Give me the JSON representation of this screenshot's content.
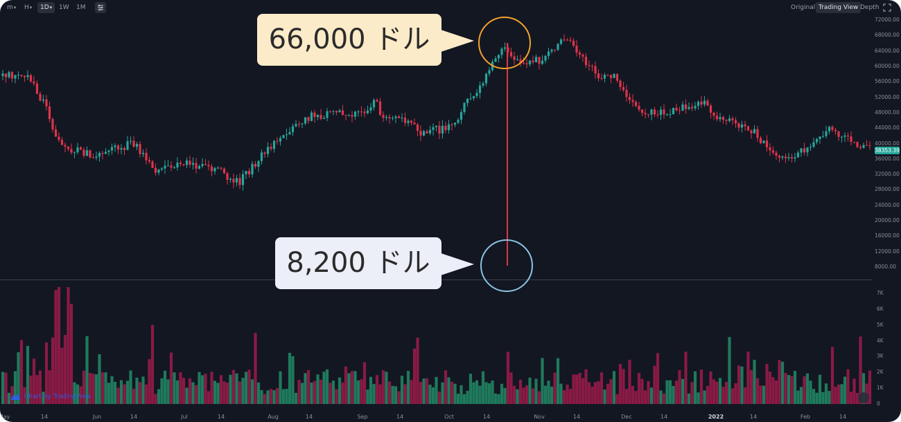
{
  "toolbar": {
    "intervals": [
      {
        "label": "m",
        "dropdown": true,
        "selected": false
      },
      {
        "label": "H",
        "dropdown": true,
        "selected": false
      },
      {
        "label": "1D",
        "dropdown": true,
        "selected": true
      },
      {
        "label": "1W",
        "dropdown": false,
        "selected": false
      },
      {
        "label": "1M",
        "dropdown": false,
        "selected": false
      }
    ],
    "settings_icon": "sliders-icon",
    "views": [
      {
        "label": "Original",
        "selected": false
      },
      {
        "label": "Trading View",
        "selected": true
      },
      {
        "label": "Depth",
        "selected": false
      }
    ],
    "fullscreen_icon": "fullscreen-icon"
  },
  "price_axis": {
    "labels": [
      "72000.00",
      "68000.00",
      "64000.00",
      "60000.00",
      "56000.00",
      "52000.00",
      "48000.00",
      "44000.00",
      "40000.00",
      "36000.00",
      "32000.00",
      "28000.00",
      "24000.00",
      "20000.00",
      "16000.00",
      "12000.00",
      "8000.00"
    ],
    "current_price": "38353.39"
  },
  "volume_axis": {
    "labels": [
      "7K",
      "6K",
      "5K",
      "4K",
      "3K",
      "2K",
      "1K",
      "0"
    ]
  },
  "time_axis": {
    "labels": [
      {
        "text": "May",
        "bold": false
      },
      {
        "text": "14",
        "bold": false
      },
      {
        "text": "Jun",
        "bold": false
      },
      {
        "text": "14",
        "bold": false
      },
      {
        "text": "Jul",
        "bold": false
      },
      {
        "text": "14",
        "bold": false
      },
      {
        "text": "Aug",
        "bold": false
      },
      {
        "text": "14",
        "bold": false
      },
      {
        "text": "Sep",
        "bold": false
      },
      {
        "text": "14",
        "bold": false
      },
      {
        "text": "Oct",
        "bold": false
      },
      {
        "text": "14",
        "bold": false
      },
      {
        "text": "Nov",
        "bold": false
      },
      {
        "text": "14",
        "bold": false
      },
      {
        "text": "Dec",
        "bold": false
      },
      {
        "text": "14",
        "bold": false
      },
      {
        "text": "2022",
        "bold": true
      },
      {
        "text": "14",
        "bold": false
      },
      {
        "text": "Feb",
        "bold": false
      },
      {
        "text": "14",
        "bold": false
      }
    ]
  },
  "watermark": {
    "text": "Chart by TradingView"
  },
  "annotations": {
    "high_label": "66,000 ドル",
    "low_label": "8,200 ドル"
  },
  "colors": {
    "background": "#131722",
    "up": "#26a69a",
    "down": "#e0344a",
    "vol_up": "#1f7a5c",
    "vol_down": "#8a1a45",
    "high_circle": "#f5a32b",
    "low_circle": "#8cc3e3",
    "high_callout": "#fcebc8",
    "low_callout": "#eceef8"
  },
  "chart_data": {
    "type": "candlestick",
    "title": "",
    "price_range": [
      8000,
      72000
    ],
    "volume_range_k": [
      0,
      7
    ],
    "x_range": [
      "May",
      "Feb 14"
    ],
    "grid": false,
    "keypoints_price": [
      [
        "May 1",
        57500
      ],
      [
        "May 10",
        58000
      ],
      [
        "May 14",
        50000
      ],
      [
        "May 20",
        39000
      ],
      [
        "Jun 1",
        37000
      ],
      [
        "Jun 14",
        40000
      ],
      [
        "Jun 22",
        33000
      ],
      [
        "Jul 1",
        35000
      ],
      [
        "Jul 14",
        32500
      ],
      [
        "Jul 21",
        30000
      ],
      [
        "Aug 1",
        40000
      ],
      [
        "Aug 14",
        47000
      ],
      [
        "Sep 1",
        48000
      ],
      [
        "Sep 6",
        52000
      ],
      [
        "Sep 8",
        46000
      ],
      [
        "Sep 14",
        47500
      ],
      [
        "Sep 21",
        43000
      ],
      [
        "Oct 1",
        44000
      ],
      [
        "Oct 14",
        57500
      ],
      [
        "Oct 20",
        66000
      ],
      [
        "Oct 25",
        61000
      ],
      [
        "Nov 1",
        61500
      ],
      [
        "Nov 10",
        67500
      ],
      [
        "Nov 14",
        64500
      ],
      [
        "Nov 20",
        58000
      ],
      [
        "Nov 28",
        57000
      ],
      [
        "Dec 1",
        53000
      ],
      [
        "Dec 4",
        49000
      ],
      [
        "Dec 14",
        48000
      ],
      [
        "Dec 28",
        51000
      ],
      [
        "2022",
        47000
      ],
      [
        "Jan 14",
        43000
      ],
      [
        "Jan 22",
        36000
      ],
      [
        "Feb 1",
        38000
      ],
      [
        "Feb 10",
        44000
      ],
      [
        "Feb 14",
        42000
      ],
      [
        "Feb 20",
        38353
      ]
    ],
    "notable_events": [
      {
        "label": "66,000 ドル",
        "price": 66000,
        "date": "Oct 20"
      },
      {
        "label": "8,200 ドル",
        "price": 8200,
        "date": "Oct 21"
      }
    ]
  }
}
